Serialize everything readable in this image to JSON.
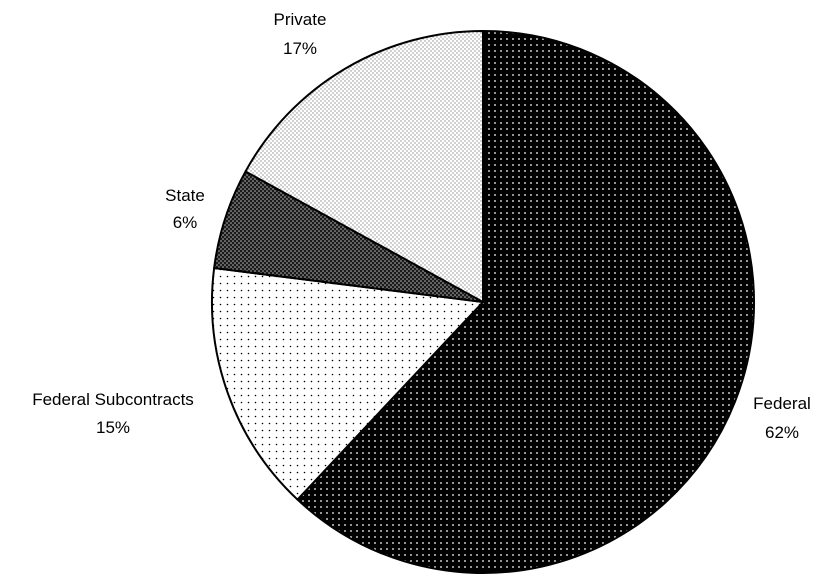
{
  "chart_data": {
    "type": "pie",
    "title": "",
    "start": "12 o'clock",
    "direction": "clockwise",
    "slices": [
      {
        "label": "Federal",
        "percent_label": "62%",
        "value": 62,
        "pattern": "dense-black-white-dots"
      },
      {
        "label": "Federal Subcontracts",
        "percent_label": "15%",
        "value": 15,
        "pattern": "sparse-black-dots-on-white"
      },
      {
        "label": "State",
        "percent_label": "6%",
        "value": 6,
        "pattern": "dark-crosshatch-dots"
      },
      {
        "label": "Private",
        "percent_label": "17%",
        "value": 17,
        "pattern": "light-gray-dots"
      }
    ]
  }
}
